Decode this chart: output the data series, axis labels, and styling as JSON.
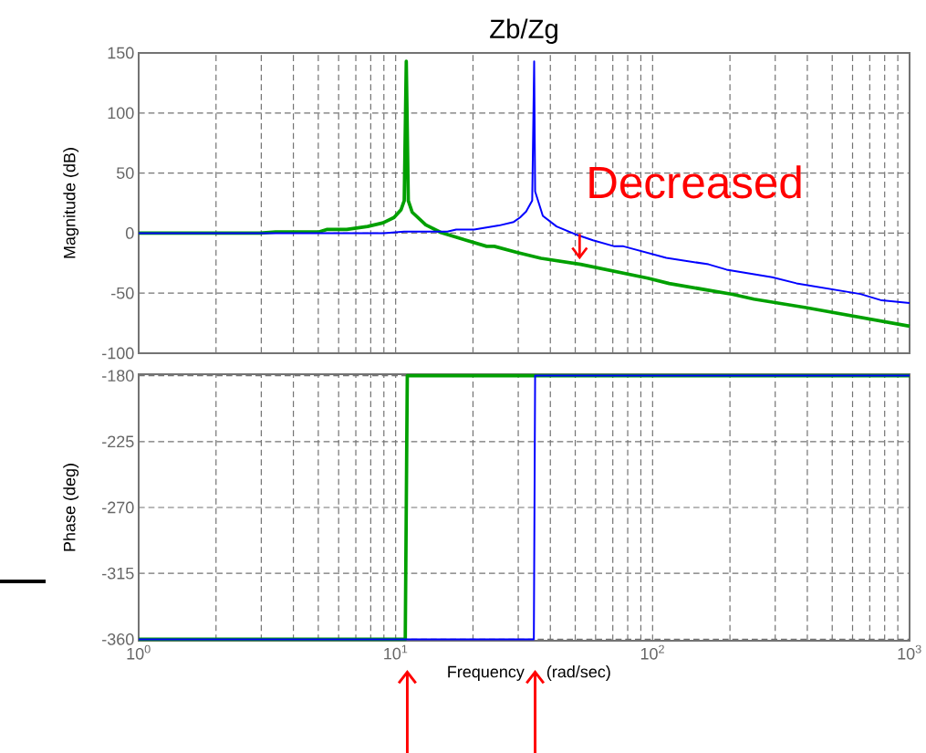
{
  "chart_data": [
    {
      "type": "line",
      "title": "Zb/Zg",
      "ylabel": "Magnitude (dB)",
      "log": "x",
      "grid": true,
      "tick_labels": "y",
      "marker": "none",
      "line_style": "solid",
      "xlim": [
        1,
        1000
      ],
      "xticks": [
        1,
        10,
        100,
        1000
      ],
      "ylim": [
        -100,
        150
      ],
      "yticks": [
        -100,
        -50,
        0,
        50,
        100,
        150
      ],
      "annotations": [
        {
          "text": "Decreased",
          "x": 52,
          "y": -22
        }
      ],
      "series": [
        {
          "color": "#00a000",
          "x": [
            1,
            2.97,
            3.41,
            5.05,
            5.39,
            6.45,
            7.78,
            8.94,
            9.86,
            10.5,
            10.8,
            11.0,
            11.2,
            11.6,
            13.1,
            15.0,
            18.7,
            22.6,
            24.2,
            29.6,
            36.8,
            52.5,
            95.7,
            116,
            205,
            248,
            395,
            1000
          ],
          "values": [
            0,
            0,
            1,
            1,
            3,
            3,
            5.5,
            8.6,
            13,
            19.5,
            27,
            143,
            27,
            17.4,
            6.8,
            0.5,
            -5.8,
            -11,
            -11,
            -16,
            -21,
            -26,
            -37.5,
            -42,
            -51,
            -55,
            -62,
            -77.5
          ]
        },
        {
          "color": "#0000ff",
          "x": [
            1,
            9,
            10.8,
            15.9,
            17.2,
            20.2,
            25.2,
            28.8,
            30.5,
            32.2,
            34.0,
            34.6,
            34.9,
            37.4,
            42.3,
            49.8,
            58.6,
            71,
            77,
            113,
            165,
            194,
            292,
            363,
            644,
            779,
            1000
          ],
          "values": [
            0,
            0,
            1.2,
            1.2,
            3,
            3,
            6.3,
            9.3,
            13,
            18,
            27,
            143,
            34.7,
            14.4,
            5.5,
            -0.8,
            -6,
            -11,
            -11,
            -20.6,
            -26,
            -30.4,
            -36.8,
            -41.8,
            -50.7,
            -56,
            -58.3
          ]
        }
      ]
    },
    {
      "type": "line",
      "ylabel": "Phase (deg)",
      "xlabel": "Frequency  (rad/sec)",
      "log": "x",
      "grid": true,
      "marker": "none",
      "line_style": "solid",
      "xlim": [
        1,
        1000
      ],
      "xticks": [
        {
          "value": 1,
          "label": "10$^{0}$"
        },
        {
          "value": 10,
          "label": "10$^{1}$"
        },
        {
          "value": 100,
          "label": "10$^{2}$"
        },
        {
          "value": 1000,
          "label": "10$^{3}$"
        }
      ],
      "ylim": [
        -361,
        -179
      ],
      "yticks": [
        -360,
        -315,
        -270,
        -225,
        -180
      ],
      "series": [
        {
          "color": "#00a000",
          "x": [
            1,
            10.9,
            11.1,
            1000
          ],
          "values": [
            -360,
            -360,
            -180,
            -180
          ]
        },
        {
          "color": "#0000ff",
          "x": [
            1,
            34.5,
            34.9,
            1000
          ],
          "values": [
            -360,
            -360,
            -180,
            -180
          ]
        }
      ]
    }
  ]
}
